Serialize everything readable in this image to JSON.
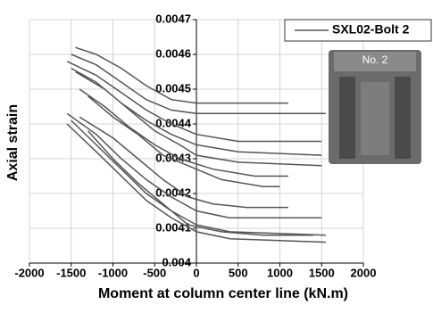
{
  "chart_data": {
    "type": "line",
    "xlabel": "Moment at column center line (kN.m)",
    "ylabel": "Axial strain",
    "inset_label": "No. 2",
    "xlim": [
      -2000,
      2000
    ],
    "xticks": [
      -2000,
      -1500,
      -1000,
      -500,
      0,
      500,
      1000,
      1500,
      2000
    ],
    "ylim": [
      0.004,
      0.0047
    ],
    "yticks": [
      0.004,
      0.0041,
      0.0042,
      0.0043,
      0.0044,
      0.0045,
      0.0046,
      0.0047
    ],
    "grid": true,
    "legend": "upper right",
    "x": [
      -1450,
      -1200,
      -900,
      -600,
      -300,
      0,
      500,
      1100,
      null,
      -1500,
      -1200,
      -900,
      -600,
      -300,
      0,
      500,
      1550,
      null,
      -1550,
      -1200,
      -900,
      -600,
      -300,
      0,
      500,
      1500,
      null,
      -1500,
      -1200,
      -900,
      -600,
      -300,
      0,
      500,
      1500,
      null,
      -1450,
      -1100,
      -800,
      -500,
      -200,
      0,
      500,
      1500,
      null,
      -1400,
      -1100,
      -800,
      -500,
      -200,
      200,
      700,
      1100,
      null,
      -1300,
      -1000,
      -700,
      -400,
      -100,
      300,
      800,
      1000,
      null,
      -1550,
      -1200,
      -900,
      -600,
      -300,
      0,
      400,
      1500,
      null,
      -1500,
      -1200,
      -900,
      -600,
      -300,
      0,
      400,
      1550,
      null,
      -1550,
      -1200,
      -900,
      -600,
      -300,
      0,
      400,
      1550,
      null,
      -1300,
      -1000,
      -700,
      -400,
      -100,
      300,
      800,
      1400,
      null,
      -1400,
      -1000,
      -700,
      -400,
      -100,
      200,
      600,
      1100
    ],
    "series": [
      {
        "name": "SXL02-Bolt 2",
        "color": "#555555",
        "values": [
          0.00462,
          0.0046,
          0.00456,
          0.00451,
          0.00447,
          0.00446,
          0.00446,
          0.00446,
          null,
          0.0046,
          0.00457,
          0.00452,
          0.00447,
          0.00444,
          0.00443,
          0.00443,
          0.00443,
          null,
          0.00458,
          0.00454,
          0.00449,
          0.00444,
          0.0044,
          0.00437,
          0.00435,
          0.00435,
          null,
          0.00456,
          0.00452,
          0.00446,
          0.00441,
          0.00437,
          0.00434,
          0.00432,
          0.00431,
          null,
          0.00455,
          0.0045,
          0.00444,
          0.00438,
          0.00434,
          0.00431,
          0.00429,
          0.00428,
          null,
          0.0045,
          0.00445,
          0.00439,
          0.00434,
          0.0043,
          0.00427,
          0.00425,
          0.00425,
          null,
          0.00448,
          0.00442,
          0.00437,
          0.00431,
          0.00428,
          0.00424,
          0.00422,
          0.00422,
          null,
          0.00443,
          0.00437,
          0.0043,
          0.00424,
          0.00419,
          0.00415,
          0.00413,
          0.00413,
          null,
          0.00441,
          0.00434,
          0.00427,
          0.0042,
          0.00415,
          0.00411,
          0.00409,
          0.00408,
          null,
          0.0044,
          0.00432,
          0.00425,
          0.00418,
          0.00413,
          0.00409,
          0.00407,
          0.00406,
          null,
          0.00438,
          0.0043,
          0.00423,
          0.00417,
          0.00411,
          0.00409,
          0.00408,
          0.00408,
          null,
          0.00442,
          0.00436,
          0.0043,
          0.00424,
          0.00419,
          0.00417,
          0.00416,
          0.00416
        ]
      }
    ]
  }
}
